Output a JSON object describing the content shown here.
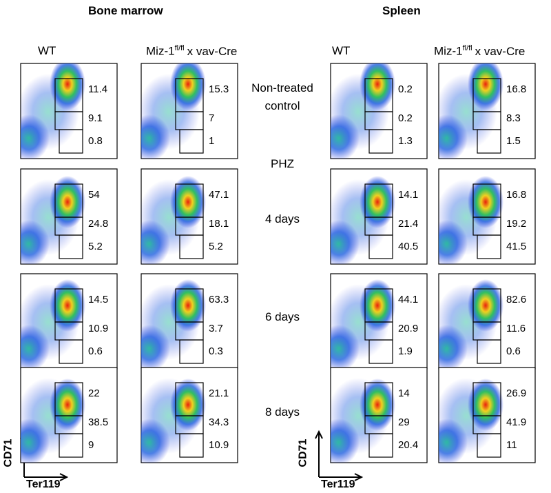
{
  "group_label": "PHZ",
  "row_labels": [
    "Non-treated control",
    "4 days",
    "6 days",
    "8 days"
  ],
  "sections": [
    {
      "title": "Bone marrow",
      "y_axis": "CD71",
      "x_axis": "Ter119",
      "columns": [
        {
          "header": "WT",
          "panels": [
            [
              11.4,
              9.1,
              0.8
            ],
            [
              54,
              24.8,
              5.2
            ],
            [
              14.5,
              10.9,
              0.6
            ],
            [
              22,
              38.5,
              9
            ]
          ]
        },
        {
          "header": "Miz-1",
          "header_sup": "fl/fl",
          "header_suffix": "x vav-Cre",
          "panels": [
            [
              15.3,
              7,
              1
            ],
            [
              47.1,
              18.1,
              5.2
            ],
            [
              63.3,
              3.7,
              0.3
            ],
            [
              21.1,
              34.3,
              10.9
            ]
          ]
        }
      ]
    },
    {
      "title": "Spleen",
      "y_axis": "CD71",
      "x_axis": "Ter119",
      "columns": [
        {
          "header": "WT",
          "panels": [
            [
              0.2,
              0.2,
              1.3
            ],
            [
              14.1,
              21.4,
              40.5
            ],
            [
              44.1,
              20.9,
              1.9
            ],
            [
              14,
              29,
              20.4
            ]
          ]
        },
        {
          "header": "Miz-1",
          "header_sup": "fl/fl",
          "header_suffix": "x vav-Cre",
          "panels": [
            [
              16.8,
              8.3,
              1.5
            ],
            [
              16.8,
              19.2,
              41.5
            ],
            [
              82.6,
              11.6,
              0.6
            ],
            [
              26.9,
              41.9,
              11
            ]
          ]
        }
      ]
    }
  ]
}
